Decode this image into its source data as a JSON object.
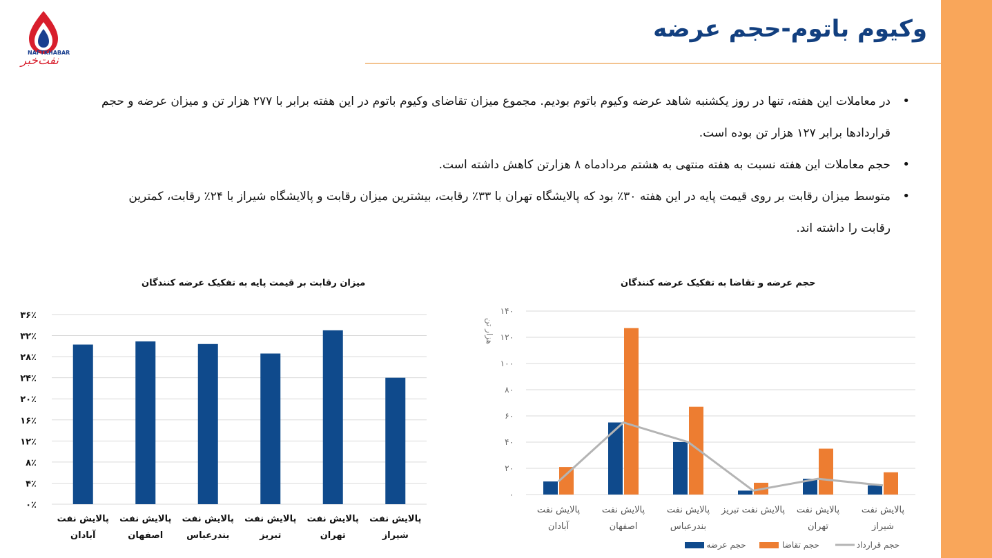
{
  "slide": {
    "title": "وکیوم باتوم-حجم عرضه",
    "logo_caption": "NAFTKHABAR",
    "logo_script": "نفت‌خبر"
  },
  "bullets": [
    "در معاملات این هفته، تنها در روز یکشنبه شاهد عرضه وکیوم باتوم بودیم. مجموع میزان تقاضای وکیوم باتوم در این هفته برابر با ۲۷۷ هزار تن و میزان عرضه و حجم قراردادها برابر ۱۲۷ هزار تن بوده است.",
    "حجم معاملات این هفته نسبت به هفته منتهی به هشتم مردادماه ۸ هزارتن کاهش داشته است.",
    "متوسط میزان رقابت بر روی قیمت پایه در این هفته ۳۰٪ بود که پالایشگاه تهران با ۳۳٪ رقابت، بیشترین میزان رقابت و پالایشگاه شیراز با ۲۴٪ رقابت، کمترین رقابت را داشته اند."
  ],
  "colors": {
    "accent": "#f9a65a",
    "title": "#123f7f",
    "blue": "#0f4a8c",
    "orange": "#ed7d31",
    "gray": "#b4b4b4"
  },
  "chart_data": [
    {
      "type": "bar",
      "title": "میزان رقابت بر قیمت پایه به تفکیک عرضه کنندگان",
      "categories": [
        [
          "پالایش نفت",
          "آبادان"
        ],
        [
          "پالایش نفت",
          "اصفهان"
        ],
        [
          "پالایش نفت",
          "بندرعباس"
        ],
        [
          "پالایش نفت",
          "تبریز"
        ],
        [
          "پالایش نفت",
          "تهران"
        ],
        [
          "پالایش نفت",
          "شیراز"
        ]
      ],
      "values": [
        30.3,
        30.9,
        30.4,
        28.6,
        33.0,
        24.0
      ],
      "ylim": [
        0,
        36
      ],
      "yticks": [
        0,
        4,
        8,
        12,
        16,
        20,
        24,
        28,
        32,
        36
      ],
      "ytick_labels": [
        "۰٪",
        "۴٪",
        "۸٪",
        "۱۲٪",
        "۱۶٪",
        "۲۰٪",
        "۲۴٪",
        "۲۸٪",
        "۳۲٪",
        "۳۶٪"
      ],
      "grid": true,
      "legend": null
    },
    {
      "type": "bar",
      "title": "حجم عرضه و تقاضا به تفکیک عرضه کنندگان",
      "ylabel": "هزار تن",
      "categories": [
        [
          "پالایش نفت",
          "آبادان"
        ],
        [
          "پالایش نفت",
          "اصفهان"
        ],
        [
          "پالایش نفت",
          "بندرعباس"
        ],
        [
          "پالایش نفت تبریز"
        ],
        [
          "پالایش نفت",
          "تهران"
        ],
        [
          "پالایش نفت",
          "شیراز"
        ]
      ],
      "series": [
        {
          "name": "حجم عرضه",
          "kind": "bar",
          "values": [
            10,
            55,
            40,
            3,
            12,
            7
          ]
        },
        {
          "name": "حجم تقاضا",
          "kind": "bar",
          "values": [
            21,
            127,
            67,
            9,
            35,
            17
          ]
        },
        {
          "name": "حجم قرارداد",
          "kind": "line",
          "values": [
            10,
            55,
            40,
            3,
            12,
            7
          ]
        }
      ],
      "ylim": [
        0,
        140
      ],
      "yticks": [
        0,
        20,
        40,
        60,
        80,
        100,
        120,
        140
      ],
      "ytick_labels": [
        "۰",
        "۲۰",
        "۴۰",
        "۶۰",
        "۸۰",
        "۱۰۰",
        "۱۲۰",
        "۱۴۰"
      ],
      "grid": true,
      "legend": "bottom"
    }
  ]
}
